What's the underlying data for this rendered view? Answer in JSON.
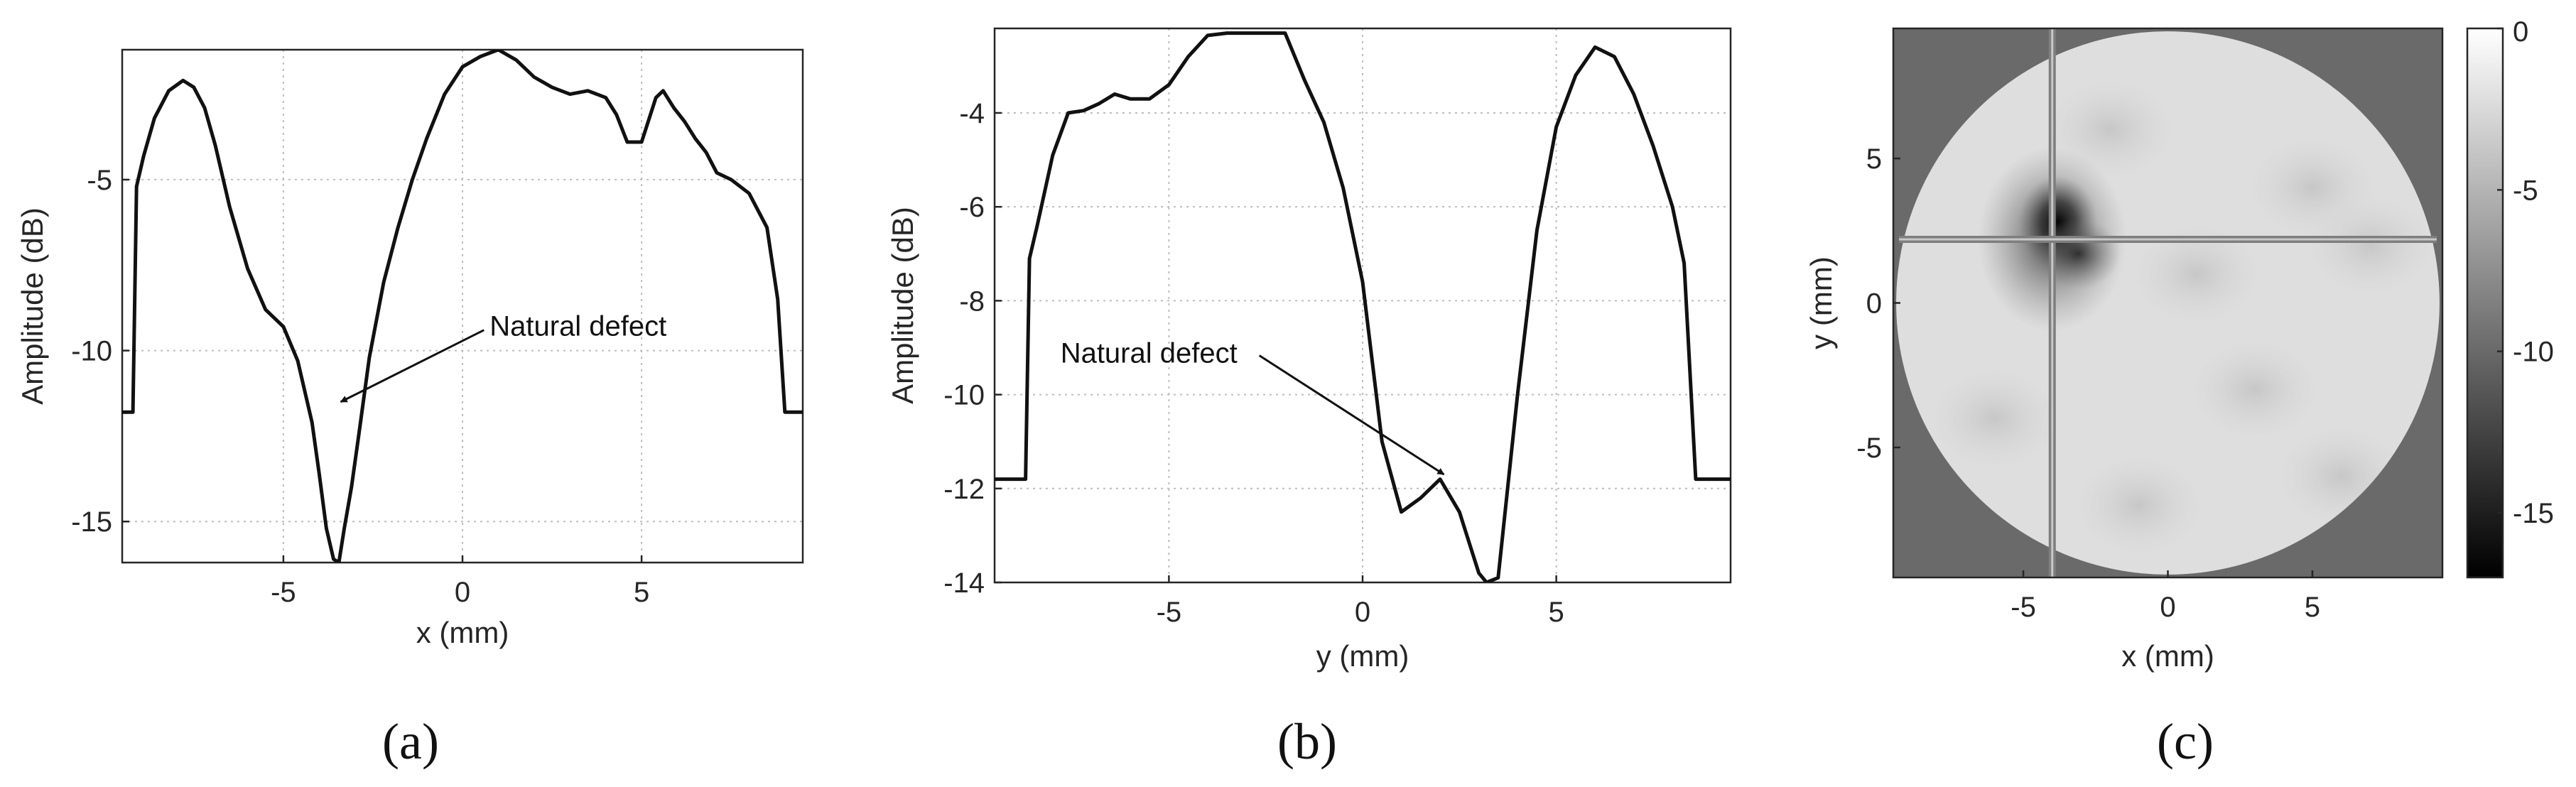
{
  "chart_data": [
    {
      "type": "line",
      "panel": "a",
      "caption": "(a)",
      "xlabel": "x (mm)",
      "ylabel": "Amplitude (dB)",
      "xlim": [
        -9.5,
        9.5
      ],
      "ylim": [
        -16.2,
        -1.2
      ],
      "xticks": [
        -5,
        0,
        5
      ],
      "yticks": [
        -5,
        -10,
        -15
      ],
      "grid": true,
      "x": [
        -9.5,
        -9.2,
        -9.1,
        -8.9,
        -8.6,
        -8.2,
        -7.8,
        -7.5,
        -7.2,
        -6.9,
        -6.5,
        -6,
        -5.5,
        -5,
        -4.6,
        -4.2,
        -4,
        -3.8,
        -3.6,
        -3.45,
        -3.3,
        -3.1,
        -2.9,
        -2.6,
        -2.2,
        -1.8,
        -1.4,
        -1,
        -0.5,
        0,
        0.5,
        1,
        1.5,
        2,
        2.5,
        3,
        3.5,
        4,
        4.3,
        4.6,
        5,
        5.4,
        5.6,
        5.9,
        6.2,
        6.5,
        6.8,
        7.1,
        7.5,
        8,
        8.5,
        8.8,
        9,
        9.1,
        9.2,
        9.5
      ],
      "y": [
        -11.8,
        -11.8,
        -5.2,
        -4.3,
        -3.2,
        -2.4,
        -2.1,
        -2.3,
        -2.9,
        -4,
        -5.8,
        -7.6,
        -8.8,
        -9.3,
        -10.3,
        -12.1,
        -13.6,
        -15.2,
        -16.1,
        -16.2,
        -15.2,
        -14,
        -12.5,
        -10.2,
        -8,
        -6.4,
        -5,
        -3.8,
        -2.5,
        -1.7,
        -1.4,
        -1.2,
        -1.5,
        -2,
        -2.3,
        -2.5,
        -2.4,
        -2.6,
        -3.1,
        -3.9,
        -3.9,
        -2.6,
        -2.4,
        -2.9,
        -3.3,
        -3.8,
        -4.2,
        -4.8,
        -5,
        -5.4,
        -6.4,
        -8.5,
        -11.8,
        -11.8,
        -11.8,
        -11.8
      ],
      "annotation": {
        "text": "Natural defect",
        "x": 0.6,
        "y": -9.4,
        "arrow_to": [
          -3.4,
          -11.5
        ]
      }
    },
    {
      "type": "line",
      "panel": "b",
      "caption": "(b)",
      "xlabel": "y (mm)",
      "ylabel": "Amplitude (dB)",
      "xlim": [
        -9.5,
        9.5
      ],
      "ylim": [
        -14,
        -2.2
      ],
      "xticks": [
        -5,
        0,
        5
      ],
      "yticks": [
        -4,
        -6,
        -8,
        -10,
        -12,
        -14
      ],
      "grid": true,
      "x": [
        -9.5,
        -8.7,
        -8.6,
        -8.4,
        -8,
        -7.6,
        -7.2,
        -6.8,
        -6.4,
        -6,
        -5.5,
        -5,
        -4.5,
        -4,
        -3.5,
        -3,
        -2.5,
        -2,
        -1.5,
        -1,
        -0.5,
        0,
        0.5,
        1,
        1.5,
        2,
        2.5,
        3,
        3.2,
        3.5,
        4,
        4.5,
        5,
        5.5,
        6,
        6.5,
        7,
        7.5,
        8,
        8.3,
        8.6,
        8.7,
        9.5
      ],
      "y": [
        -11.8,
        -11.8,
        -7.1,
        -6.4,
        -4.9,
        -4,
        -3.95,
        -3.8,
        -3.6,
        -3.7,
        -3.7,
        -3.4,
        -2.8,
        -2.35,
        -2.3,
        -2.3,
        -2.3,
        -2.3,
        -3.3,
        -4.2,
        -5.6,
        -7.6,
        -11,
        -12.5,
        -12.2,
        -11.8,
        -12.5,
        -13.8,
        -14,
        -13.9,
        -10,
        -6.5,
        -4.3,
        -3.2,
        -2.6,
        -2.8,
        -3.6,
        -4.7,
        -6,
        -7.2,
        -11.8,
        -11.8,
        -11.8
      ],
      "annotation": {
        "text": "Natural defect",
        "x": -7.8,
        "y": -9.5,
        "arrow_to": [
          2.1,
          -11.7
        ]
      }
    },
    {
      "type": "heatmap",
      "panel": "c",
      "caption": "(c)",
      "xlabel": "x (mm)",
      "ylabel": "y (mm)",
      "xlim": [
        -9.5,
        9.5
      ],
      "ylim": [
        -9.5,
        9.5
      ],
      "xticks": [
        -5,
        0,
        5
      ],
      "yticks": [
        5,
        0,
        -5
      ],
      "aperture_radius_mm": 9.4,
      "defect_center": [
        -4,
        2.2
      ],
      "colorbar": {
        "min": -17,
        "max": 0,
        "ticks": [
          0,
          -5,
          -10,
          -15
        ],
        "colormap": "gray"
      }
    }
  ]
}
